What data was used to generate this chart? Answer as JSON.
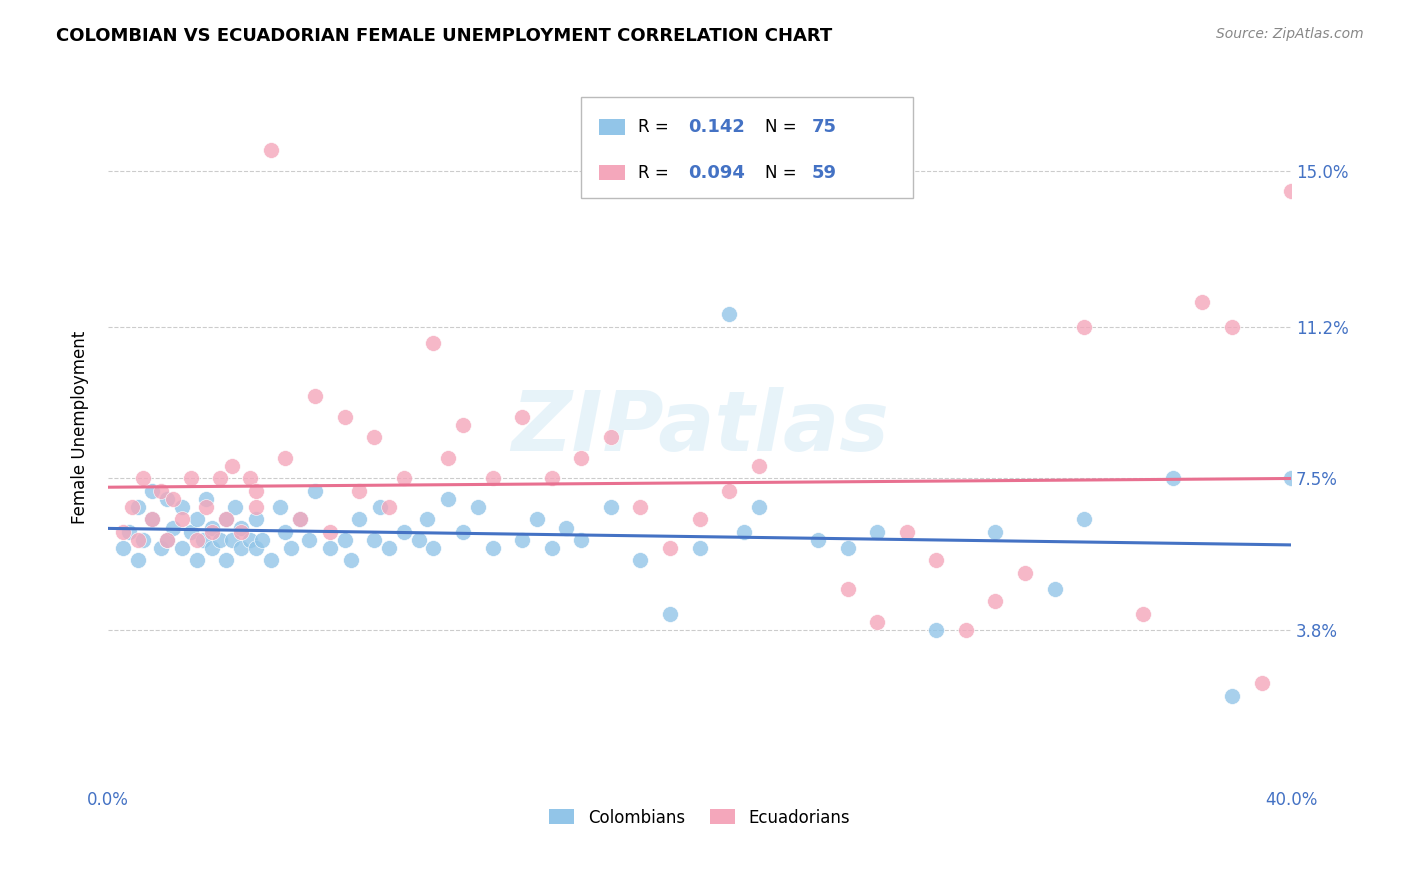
{
  "title": "COLOMBIAN VS ECUADORIAN FEMALE UNEMPLOYMENT CORRELATION CHART",
  "source": "Source: ZipAtlas.com",
  "ylabel": "Female Unemployment",
  "ytick_labels": [
    "15.0%",
    "11.2%",
    "7.5%",
    "3.8%"
  ],
  "ytick_values": [
    0.15,
    0.112,
    0.075,
    0.038
  ],
  "xlim": [
    0.0,
    0.4
  ],
  "ylim": [
    0.0,
    0.175
  ],
  "colombians_R": "0.142",
  "colombians_N": "75",
  "ecuadorians_R": "0.094",
  "ecuadorians_N": "59",
  "color_colombians": "#92C5E8",
  "color_ecuadorians": "#F4A7BB",
  "color_blue_text": "#4472C4",
  "color_pink_line": "#E87090",
  "color_blue_line": "#4472C4",
  "background": "#FFFFFF",
  "watermark": "ZIPatlas",
  "grid_color": "#CCCCCC"
}
